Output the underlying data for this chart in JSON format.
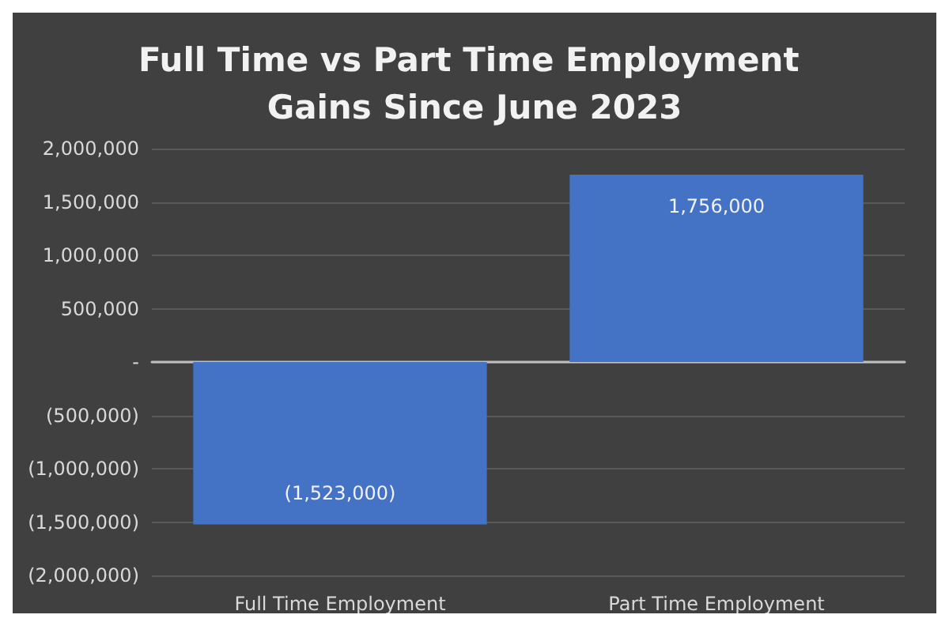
{
  "chart_data": {
    "type": "bar",
    "title": "Full Time vs Part Time Employment Gains Since June 2023",
    "categories": [
      "Full Time Employment",
      "Part Time Employment"
    ],
    "values": [
      -1523000,
      1756000
    ],
    "color": "#4472c4",
    "value_labels": [
      "(1,523,000)",
      "1,756,000"
    ],
    "ylim": [
      -2000000,
      2000000
    ],
    "yticks": [
      {
        "value": -2000000,
        "label": "(2,000,000)"
      },
      {
        "value": -1500000,
        "label": "(1,500,000)"
      },
      {
        "value": -1000000,
        "label": "(1,000,000)"
      },
      {
        "value": -500000,
        "label": "(500,000)"
      },
      {
        "value": 0,
        "label": "-"
      },
      {
        "value": 500000,
        "label": "500,000"
      },
      {
        "value": 1000000,
        "label": "1,000,000"
      },
      {
        "value": 1500000,
        "label": "1,500,000"
      },
      {
        "value": 2000000,
        "label": "2,000,000"
      }
    ],
    "grid": "y"
  }
}
